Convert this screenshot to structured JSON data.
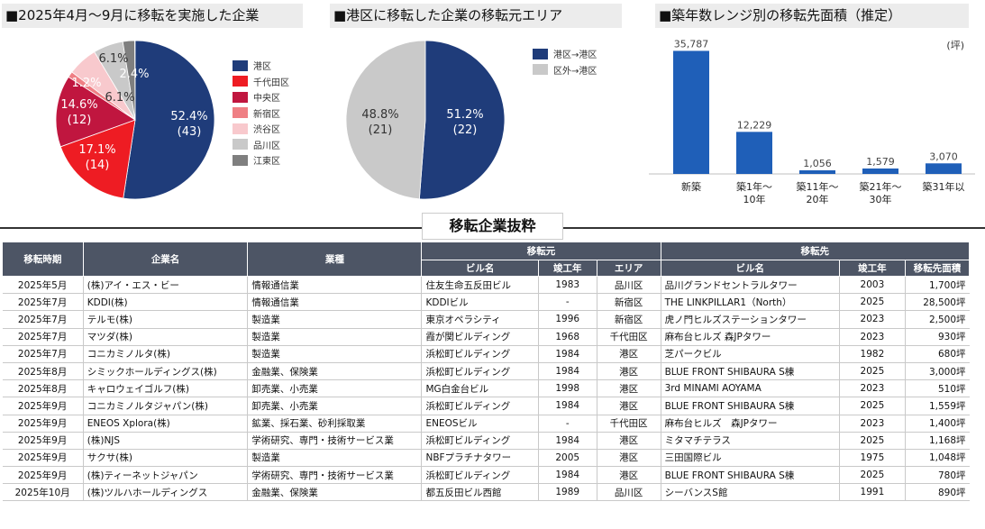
{
  "panels": {
    "pie1_title": "■2025年4月～9月に移転を実施した企業",
    "pie2_title": "■港区に移転した企業の移転元エリア",
    "bar_title": "■築年数レンジ別の移転先面積（推定）"
  },
  "chart_data": [
    {
      "type": "pie",
      "title": "■2025年4月～9月に移転を実施した企業",
      "slices": [
        {
          "name": "港区",
          "share": 52.4,
          "share_label": "52.4%",
          "count_label": "(43)",
          "color": "#1f3c7a"
        },
        {
          "name": "千代田区",
          "share": 17.1,
          "share_label": "17.1%",
          "count_label": "(14)",
          "color": "#ee1c23"
        },
        {
          "name": "中央区",
          "share": 14.6,
          "share_label": "14.6%",
          "count_label": "(12)",
          "color": "#c0163f"
        },
        {
          "name": "新宿区",
          "share": 1.2,
          "share_label": "1.2%",
          "count_label": "",
          "color": "#ef7f84"
        },
        {
          "name": "渋谷区",
          "share": 6.1,
          "share_label": "6.1%",
          "count_label": "",
          "color": "#f8c9cd"
        },
        {
          "name": "品川区",
          "share": 6.1,
          "share_label": "6.1%",
          "count_label": "",
          "color": "#c9c9c9"
        },
        {
          "name": "江東区",
          "share": 2.4,
          "share_label": "2.4%",
          "count_label": "",
          "color": "#7f7f7f"
        }
      ]
    },
    {
      "type": "pie",
      "title": "■港区に移転した企業の移転元エリア",
      "slices": [
        {
          "name": "港区→港区",
          "share": 51.2,
          "share_label": "51.2%",
          "count_label": "(22)",
          "color": "#1f3c7a"
        },
        {
          "name": "区外→港区",
          "share": 48.8,
          "share_label": "48.8%",
          "count_label": "(21)",
          "color": "#c9c9c9"
        }
      ]
    },
    {
      "type": "bar",
      "title": "■築年数レンジ別の移転先面積（推定）",
      "unit": "(坪)",
      "categories": [
        "新築",
        "築1年～10年",
        "築11年～20年",
        "築21年～30年",
        "築31年以"
      ],
      "category_labels": [
        [
          "新築"
        ],
        [
          "築1年～",
          "10年"
        ],
        [
          "築11年～",
          "20年"
        ],
        [
          "築21年～",
          "30年"
        ],
        [
          "築31年以"
        ]
      ],
      "values": [
        35787,
        12229,
        1056,
        1579,
        3070
      ],
      "value_labels": [
        "35,787",
        "12,229",
        "1,056",
        "1,579",
        "3,070"
      ],
      "ylim": [
        0,
        38000
      ],
      "color": "#1f5fb8"
    }
  ],
  "table": {
    "title": "移転企業抜粋",
    "headers": {
      "date": "移転時期",
      "company": "企業名",
      "industry": "業種",
      "from": "移転元",
      "to": "移転先",
      "bldg": "ビル名",
      "year": "竣工年",
      "area": "エリア",
      "size": "移転先面積"
    },
    "rows": [
      [
        "2025年5月",
        "(株)アイ・エス・ビー",
        "情報通信業",
        "住友生命五反田ビル",
        "1983",
        "品川区",
        "品川グランドセントラルタワー",
        "2003",
        "1,700坪"
      ],
      [
        "2025年7月",
        "KDDI(株)",
        "情報通信業",
        "KDDIビル",
        "-",
        "新宿区",
        "THE LINKPILLAR1（North）",
        "2025",
        "28,500坪"
      ],
      [
        "2025年7月",
        "テルモ(株)",
        "製造業",
        "東京オペラシティ",
        "1996",
        "新宿区",
        "虎ノ門ヒルズステーションタワー",
        "2023",
        "2,500坪"
      ],
      [
        "2025年7月",
        "マツダ(株)",
        "製造業",
        "霞が関ビルディング",
        "1968",
        "千代田区",
        "麻布台ヒルズ 森JPタワー",
        "2023",
        "930坪"
      ],
      [
        "2025年7月",
        "コニカミノルタ(株)",
        "製造業",
        "浜松町ビルディング",
        "1984",
        "港区",
        "芝パークビル",
        "1982",
        "680坪"
      ],
      [
        "2025年8月",
        "シミックホールディングス(株)",
        "金融業、保険業",
        "浜松町ビルディング",
        "1984",
        "港区",
        "BLUE FRONT SHIBAURA S棟",
        "2025",
        "3,000坪"
      ],
      [
        "2025年8月",
        "キャロウェイゴルフ(株)",
        "卸売業、小売業",
        "MG白金台ビル",
        "1998",
        "港区",
        "3rd MINAMI AOYAMA",
        "2023",
        "510坪"
      ],
      [
        "2025年9月",
        "コニカミノルタジャパン(株)",
        "卸売業、小売業",
        "浜松町ビルディング",
        "1984",
        "港区",
        "BLUE FRONT SHIBAURA S棟",
        "2025",
        "1,559坪"
      ],
      [
        "2025年9月",
        "ENEOS Xplora(株)",
        "鉱業、採石業、砂利採取業",
        "ENEOSビル",
        "-",
        "千代田区",
        "麻布台ヒルズ　森JPタワー",
        "2023",
        "1,400坪"
      ],
      [
        "2025年9月",
        "(株)NJS",
        "学術研究、専門・技術サービス業",
        "浜松町ビルディング",
        "1984",
        "港区",
        "ミタマチテラス",
        "2025",
        "1,168坪"
      ],
      [
        "2025年9月",
        "サクサ(株)",
        "製造業",
        "NBFプラチナタワー",
        "2005",
        "港区",
        "三田国際ビル",
        "1975",
        "1,048坪"
      ],
      [
        "2025年9月",
        "(株)ティーネットジャパン",
        "学術研究、専門・技術サービス業",
        "浜松町ビルディング",
        "1984",
        "港区",
        "BLUE FRONT SHIBAURA S棟",
        "2025",
        "780坪"
      ],
      [
        "2025年10月",
        "(株)ツルハホールディングス",
        "金融業、保険業",
        "都五反田ビル西館",
        "1989",
        "品川区",
        "シーバンスS館",
        "1991",
        "890坪"
      ]
    ]
  }
}
